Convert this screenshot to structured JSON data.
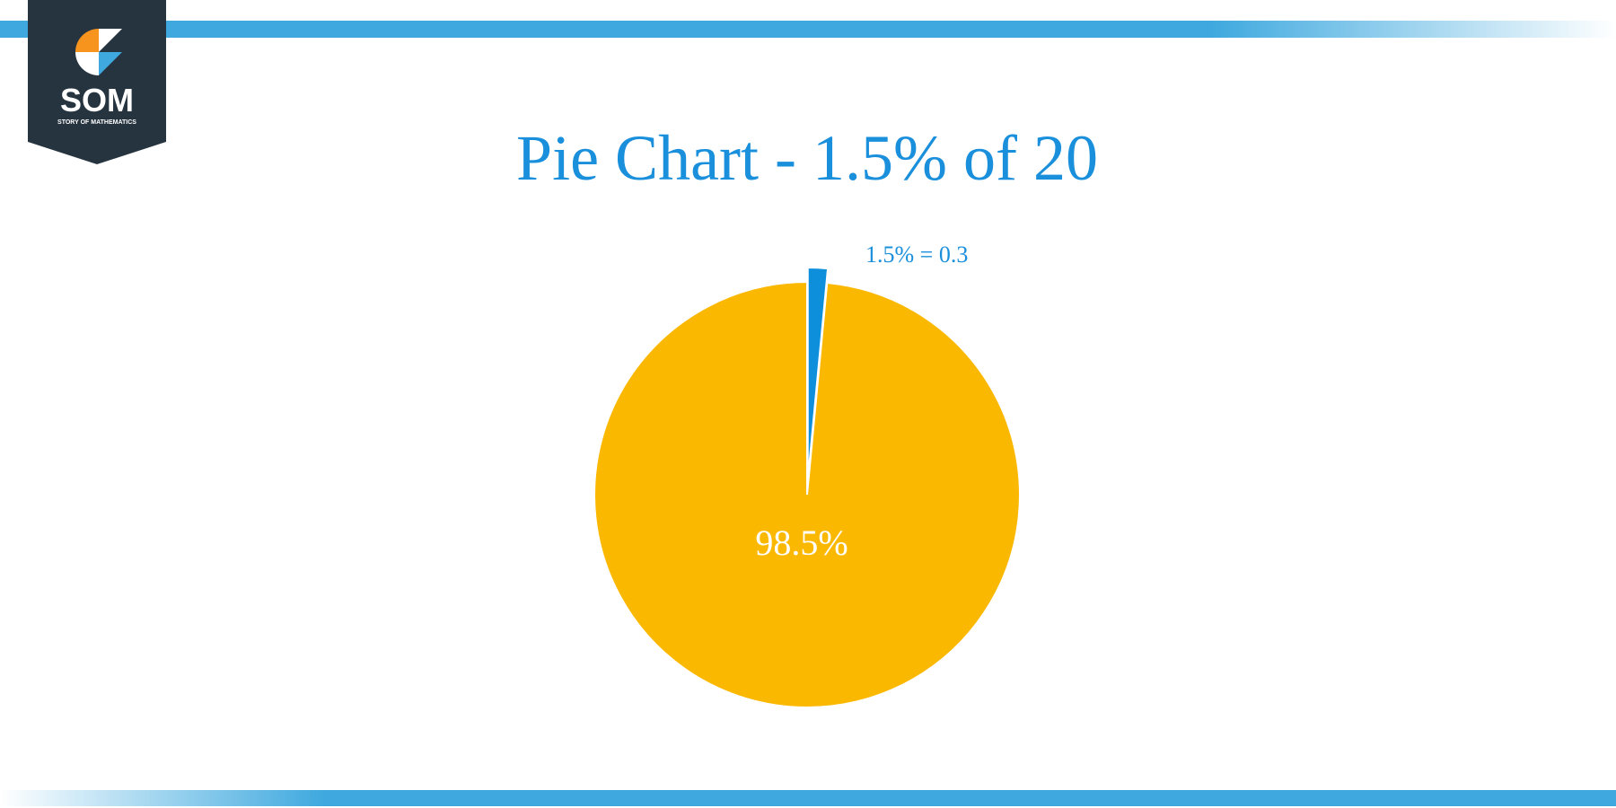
{
  "logo": {
    "name": "SOM",
    "tagline": "STORY OF MATHEMATICS"
  },
  "chart_data": {
    "type": "pie",
    "title": "Pie Chart - 1.5% of 20",
    "values": [
      1.5,
      98.5
    ],
    "value_labels": [
      "1.5% = 0.3",
      "98.5%"
    ],
    "colors": [
      "#0e8fdb",
      "#fbb800"
    ]
  }
}
